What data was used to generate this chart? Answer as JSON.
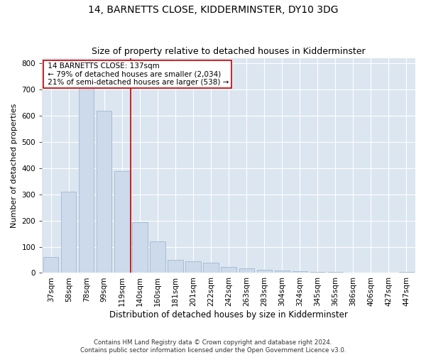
{
  "title1": "14, BARNETTS CLOSE, KIDDERMINSTER, DY10 3DG",
  "title2": "Size of property relative to detached houses in Kidderminster",
  "xlabel": "Distribution of detached houses by size in Kidderminster",
  "ylabel": "Number of detached properties",
  "footnote": "Contains HM Land Registry data © Crown copyright and database right 2024.\nContains public sector information licensed under the Open Government Licence v3.0.",
  "categories": [
    "37sqm",
    "58sqm",
    "78sqm",
    "99sqm",
    "119sqm",
    "140sqm",
    "160sqm",
    "181sqm",
    "201sqm",
    "222sqm",
    "242sqm",
    "263sqm",
    "283sqm",
    "304sqm",
    "324sqm",
    "345sqm",
    "365sqm",
    "386sqm",
    "406sqm",
    "427sqm",
    "447sqm"
  ],
  "values": [
    60,
    310,
    720,
    620,
    390,
    195,
    120,
    50,
    45,
    38,
    22,
    18,
    12,
    10,
    8,
    3,
    5,
    2,
    1,
    1,
    5
  ],
  "bar_color": "#ccdaeb",
  "bar_edge_color": "#a0b8d0",
  "vline_x": 4.5,
  "vline_color": "#cc0000",
  "annotation_text": " 14 BARNETTS CLOSE: 137sqm\n ← 79% of detached houses are smaller (2,034)\n 21% of semi-detached houses are larger (538) →",
  "annotation_box_color": "#ffffff",
  "annotation_box_edge": "#cc0000",
  "ylim": [
    0,
    820
  ],
  "yticks": [
    0,
    100,
    200,
    300,
    400,
    500,
    600,
    700,
    800
  ],
  "background_color": "#dce6f0",
  "grid_color": "#ffffff",
  "title1_fontsize": 10,
  "title2_fontsize": 9,
  "xlabel_fontsize": 8.5,
  "ylabel_fontsize": 8,
  "tick_fontsize": 7.5,
  "annot_fontsize": 7.5,
  "fig_bg": "#ffffff"
}
